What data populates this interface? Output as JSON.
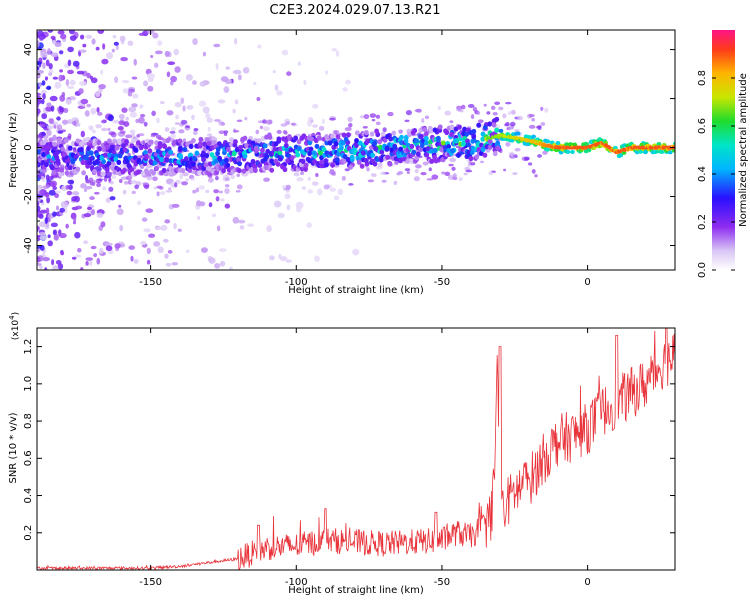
{
  "title": "C2E3.2024.029.07.13.R21",
  "chart_data": [
    {
      "type": "heatmap",
      "xlabel": "Height of straight line (km)",
      "ylabel": "Frequency (Hz)",
      "xlim": [
        -189,
        30
      ],
      "ylim": [
        -50,
        48
      ],
      "xticks": [
        -150,
        -100,
        -50,
        0
      ],
      "yticks": [
        -40,
        -20,
        0,
        20,
        40
      ],
      "colorbar": {
        "label": "Normalized spectral amplitude",
        "range": [
          0.0,
          1.0
        ],
        "ticks": [
          0.0,
          0.2,
          0.4,
          0.6,
          0.8
        ],
        "tick_labels": [
          "0.0",
          "0.2",
          "0.4",
          "0.6",
          "0.8"
        ]
      },
      "ridge": {
        "x": [
          -180,
          -160,
          -140,
          -120,
          -100,
          -80,
          -60,
          -40,
          -30,
          -20,
          -15,
          -10,
          -5,
          0,
          5,
          10,
          15,
          20,
          28
        ],
        "y": [
          -4,
          -4,
          -4,
          -3,
          -2,
          -1,
          1,
          2,
          5,
          3,
          1,
          0,
          0,
          0,
          2,
          -2,
          0,
          0,
          0
        ],
        "amplitude": [
          0.3,
          0.35,
          0.4,
          0.45,
          0.5,
          0.55,
          0.55,
          0.6,
          0.7,
          0.8,
          0.85,
          0.9,
          0.9,
          0.9,
          0.9,
          0.9,
          0.9,
          0.9,
          0.9
        ]
      }
    },
    {
      "type": "line",
      "xlabel": "Height of straight line (km)",
      "ylabel": "SNR (10 * v/v)",
      "y_multiplier": "(x10",
      "y_multiplier_exp": "4",
      "y_multiplier_close": ")",
      "xlim": [
        -189,
        30
      ],
      "ylim": [
        0,
        1.3
      ],
      "xticks": [
        -150,
        -100,
        -50,
        0
      ],
      "yticks": [
        0.2,
        0.4,
        0.6,
        0.8,
        1.0,
        1.2
      ],
      "ytick_labels": [
        "0.2",
        "0.4",
        "0.6",
        "0.8",
        "1.0",
        "1.2"
      ],
      "color": "#e8333a",
      "trend": {
        "x": [
          -189,
          -150,
          -140,
          -130,
          -120,
          -113,
          -110,
          -100,
          -90,
          -80,
          -70,
          -60,
          -50,
          -45,
          -40,
          -35,
          -33,
          -32,
          -31,
          -30,
          -29,
          -28,
          -25,
          -20,
          -15,
          -10,
          -5,
          0,
          5,
          10,
          15,
          20,
          25,
          30
        ],
        "y": [
          0.01,
          0.01,
          0.02,
          0.04,
          0.06,
          0.1,
          0.12,
          0.13,
          0.16,
          0.15,
          0.14,
          0.15,
          0.16,
          0.2,
          0.18,
          0.25,
          0.3,
          0.5,
          1.1,
          0.4,
          0.3,
          0.35,
          0.42,
          0.48,
          0.6,
          0.7,
          0.72,
          0.76,
          0.85,
          0.9,
          0.95,
          1.0,
          1.1,
          1.15
        ]
      },
      "peaks": [
        {
          "x": -113,
          "y": 0.24
        },
        {
          "x": -90,
          "y": 0.33
        },
        {
          "x": -52,
          "y": 0.31
        },
        {
          "x": -30,
          "y": 1.2
        },
        {
          "x": 10,
          "y": 1.26
        },
        {
          "x": 27,
          "y": 1.3
        }
      ]
    }
  ]
}
